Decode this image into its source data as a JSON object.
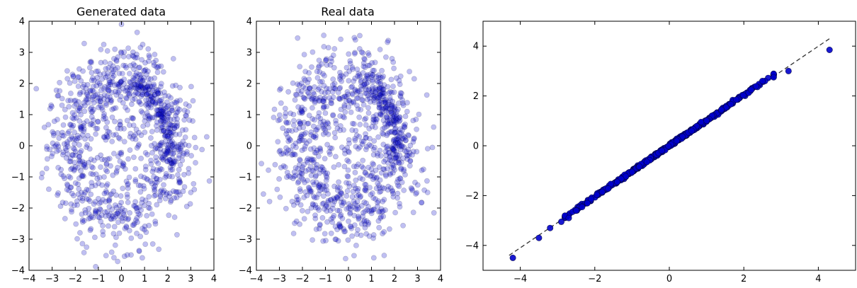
{
  "chart_data": [
    {
      "type": "scatter",
      "title": "Generated data",
      "xlim": [
        -4,
        4
      ],
      "ylim": [
        -4,
        4
      ],
      "xticks": [
        -4,
        -3,
        -2,
        -1,
        0,
        1,
        2,
        3,
        4
      ],
      "yticks": [
        -4,
        -3,
        -2,
        -1,
        0,
        1,
        2,
        3,
        4
      ],
      "marker_color": "#0000cc",
      "marker_alpha": 0.25,
      "grid": false,
      "sample_points": [
        [
          0.0,
          3.9
        ],
        [
          0.5,
          2.1
        ],
        [
          1.9,
          0.8
        ],
        [
          2.0,
          0.3
        ],
        [
          -1.8,
          1.2
        ],
        [
          -2.2,
          -0.4
        ],
        [
          -1.0,
          -1.7
        ],
        [
          0.6,
          -1.8
        ],
        [
          1.8,
          -1.5
        ],
        [
          -0.3,
          -2.6
        ],
        [
          3.0,
          -1.5
        ],
        [
          0.9,
          -3.6
        ]
      ]
    },
    {
      "type": "scatter",
      "title": "Real data",
      "xlim": [
        -4,
        4
      ],
      "ylim": [
        -4,
        4
      ],
      "xticks": [
        -4,
        -3,
        -2,
        -1,
        0,
        1,
        2,
        3,
        4
      ],
      "yticks": [
        -4,
        -3,
        -2,
        -1,
        0,
        1,
        2,
        3,
        4
      ],
      "marker_color": "#0000cc",
      "marker_alpha": 0.25,
      "grid": false,
      "sample_points": [
        [
          0.3,
          3.4
        ],
        [
          1.0,
          2.2
        ],
        [
          1.9,
          1.2
        ],
        [
          2.0,
          0.2
        ],
        [
          -1.9,
          1.5
        ],
        [
          -2.4,
          0.0
        ],
        [
          -1.8,
          -1.6
        ],
        [
          0.0,
          -2.0
        ],
        [
          1.5,
          -2.1
        ],
        [
          0.4,
          -2.7
        ],
        [
          3.7,
          0.6
        ],
        [
          1.1,
          -3.6
        ]
      ]
    },
    {
      "type": "scatter",
      "title": "",
      "xlim": [
        -5,
        5
      ],
      "ylim": [
        -5,
        5
      ],
      "xticks": [
        -4,
        -2,
        0,
        2,
        4
      ],
      "yticks": [
        -4,
        -2,
        0,
        2,
        4
      ],
      "marker_color": "#0000cc",
      "marker_alpha": 0.9,
      "grid": false,
      "reference_line": {
        "from": [
          -4.3,
          -4.4
        ],
        "to": [
          4.3,
          4.3
        ],
        "style": "dashed",
        "color": "#333333"
      },
      "sample_points": [
        [
          -4.2,
          -4.5
        ],
        [
          -3.5,
          -3.7
        ],
        [
          -3.2,
          -3.3
        ],
        [
          -2.9,
          -3.05
        ],
        [
          -2.7,
          -2.9
        ],
        [
          -2.5,
          -2.6
        ],
        [
          -2.2,
          -2.3
        ],
        [
          -1.8,
          -1.85
        ],
        [
          -1.4,
          -1.45
        ],
        [
          -1.0,
          -1.05
        ],
        [
          -0.6,
          -0.65
        ],
        [
          -0.2,
          -0.2
        ],
        [
          0.2,
          0.2
        ],
        [
          0.6,
          0.6
        ],
        [
          1.0,
          1.0
        ],
        [
          1.4,
          1.45
        ],
        [
          1.8,
          1.85
        ],
        [
          2.2,
          2.25
        ],
        [
          2.5,
          2.6
        ],
        [
          2.8,
          2.75
        ],
        [
          3.2,
          3.0
        ],
        [
          4.3,
          3.85
        ]
      ]
    }
  ]
}
